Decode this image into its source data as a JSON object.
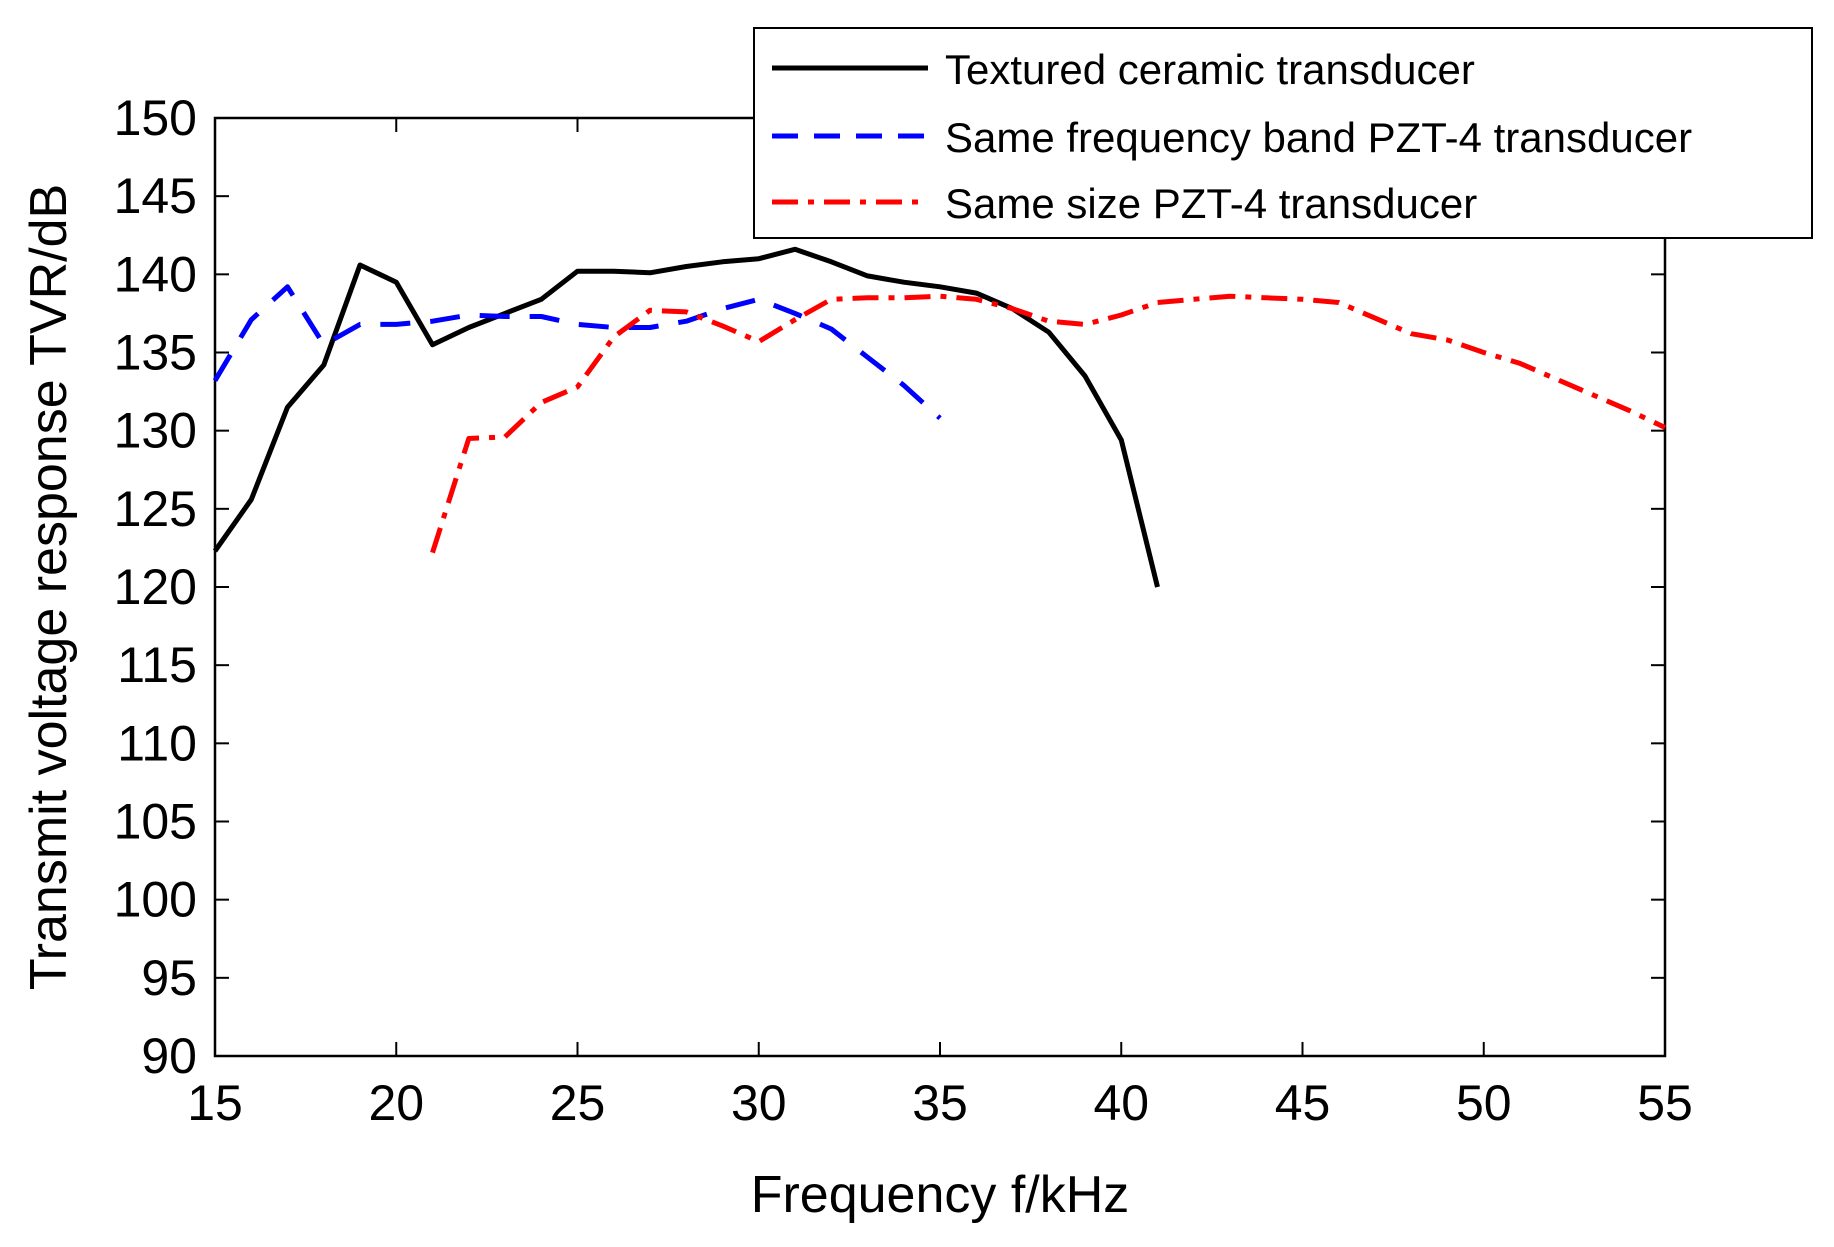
{
  "chart_data": {
    "type": "line",
    "title": "",
    "xlabel": "Frequency f/kHz",
    "ylabel": "Transmit voltage response TVR/dB",
    "xlim": [
      15,
      55
    ],
    "ylim": [
      90,
      150
    ],
    "xticks": [
      15,
      20,
      25,
      30,
      35,
      40,
      45,
      50,
      55
    ],
    "yticks": [
      90,
      95,
      100,
      105,
      110,
      115,
      120,
      125,
      130,
      135,
      140,
      145,
      150
    ],
    "grid": false,
    "legend_position": "top-right",
    "series": [
      {
        "name": "Textured ceramic transducer",
        "color": "#000000",
        "style": "solid",
        "x": [
          15,
          16,
          17,
          18,
          19,
          20,
          21,
          22,
          23,
          24,
          25,
          26,
          27,
          28,
          29,
          30,
          31,
          32,
          33,
          34,
          35,
          36,
          37,
          38,
          39,
          40,
          41
        ],
        "y": [
          122.3,
          125.6,
          131.5,
          134.2,
          140.6,
          139.5,
          135.5,
          136.6,
          137.5,
          138.4,
          140.2,
          140.2,
          140.1,
          140.5,
          140.8,
          141.0,
          141.6,
          140.8,
          139.9,
          139.5,
          139.2,
          138.8,
          137.8,
          136.3,
          133.5,
          129.4,
          120.0
        ]
      },
      {
        "name": "Same frequency band PZT-4 transducer",
        "color": "#0000ff",
        "style": "dashed",
        "x": [
          15,
          16,
          17,
          18,
          19,
          20,
          21,
          22,
          23,
          24,
          25,
          26,
          27,
          28,
          29,
          30,
          31,
          32,
          33,
          34,
          35
        ],
        "y": [
          133.2,
          137.1,
          139.2,
          135.5,
          136.8,
          136.8,
          137.0,
          137.4,
          137.3,
          137.3,
          136.8,
          136.6,
          136.6,
          137.0,
          137.8,
          138.4,
          137.5,
          136.5,
          134.7,
          132.9,
          130.8
        ]
      },
      {
        "name": "Same size PZT-4 transducer",
        "color": "#ff0000",
        "style": "dashdot",
        "x": [
          21,
          22,
          23,
          24,
          25,
          26,
          27,
          28,
          29,
          30,
          31,
          32,
          33,
          34,
          35,
          36,
          37,
          38,
          39,
          40,
          41,
          42,
          43,
          44,
          45,
          46,
          47,
          48,
          49,
          50,
          51,
          52,
          53,
          54,
          55
        ],
        "y": [
          122.2,
          129.5,
          129.6,
          131.8,
          132.8,
          136.0,
          137.7,
          137.6,
          136.7,
          135.7,
          137.1,
          138.4,
          138.5,
          138.5,
          138.6,
          138.4,
          137.8,
          137.0,
          136.8,
          137.4,
          138.2,
          138.4,
          138.6,
          138.5,
          138.4,
          138.2,
          137.2,
          136.2,
          135.8,
          135.0,
          134.3,
          133.3,
          132.3,
          131.3,
          130.2
        ]
      }
    ]
  }
}
